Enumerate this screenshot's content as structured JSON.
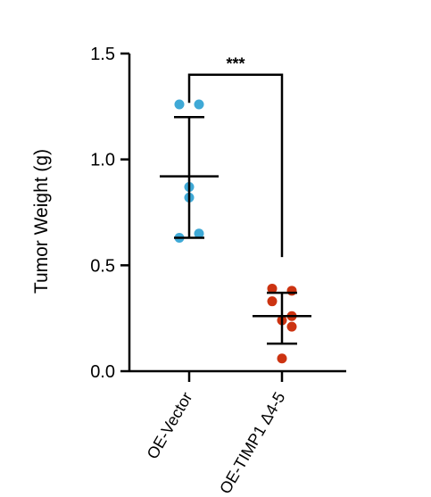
{
  "chart_data": {
    "type": "scatter",
    "ylabel": "Tumor Weight (g)",
    "ylim": [
      0,
      1.5
    ],
    "yticks": [
      0.0,
      0.5,
      1.0,
      1.5
    ],
    "ytick_labels": [
      "0.0",
      "0.5",
      "1.0",
      "1.5"
    ],
    "categories": [
      "OE-Vector",
      "OE-TIMP1 Δ4-5"
    ],
    "series": [
      {
        "category": "OE-Vector",
        "color": "#3fa9d6",
        "values": [
          1.26,
          1.26,
          0.87,
          0.82,
          0.65,
          0.63
        ],
        "mean": 0.92,
        "sd_upper": 1.2,
        "sd_lower": 0.63
      },
      {
        "category": "OE-TIMP1 Δ4-5",
        "color": "#cc3311",
        "values": [
          0.39,
          0.38,
          0.33,
          0.26,
          0.24,
          0.21,
          0.06
        ],
        "mean": 0.26,
        "sd_upper": 0.37,
        "sd_lower": 0.13
      }
    ],
    "significance": {
      "label": "***",
      "bracket_y": 1.4
    },
    "grid": false
  }
}
